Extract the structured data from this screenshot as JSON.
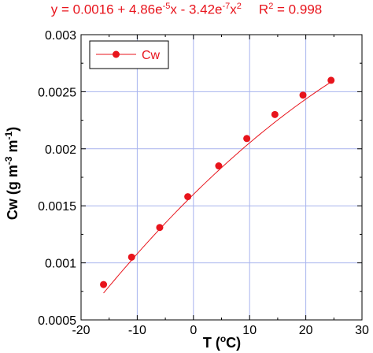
{
  "annotation": {
    "equation_prefix": "y = 0.0016 + 4.86e",
    "equation_exp1": "-5",
    "equation_mid": "x - 3.42e",
    "equation_exp2": "-7",
    "equation_mid2": "x",
    "equation_exp3": "2",
    "r2_label": "R",
    "r2_exp": "2",
    "r2_value": " = 0.998",
    "color": "#e8141c"
  },
  "chart_data": {
    "type": "scatter",
    "title": "",
    "xlabel_main": "T (",
    "xlabel_sup": "o",
    "xlabel_end": "C)",
    "ylabel_main": "Cw (g m",
    "ylabel_sup1": "-3",
    "ylabel_mid": " m",
    "ylabel_sup2": "-1",
    "ylabel_end": ")",
    "xlim": [
      -20,
      30
    ],
    "ylim": [
      0.0005,
      0.003
    ],
    "xticks": [
      -20,
      -10,
      0,
      10,
      20,
      30
    ],
    "xtick_labels": [
      "-20",
      "-10",
      "0",
      "10",
      "20",
      "30"
    ],
    "yticks": [
      0.0005,
      0.001,
      0.0015,
      0.002,
      0.0025,
      0.003
    ],
    "ytick_labels": [
      "0.0005",
      "0.001",
      "0.0015",
      "0.002",
      "0.0025",
      "0.003"
    ],
    "grid": true,
    "legend_position": "top-left",
    "series": [
      {
        "name": "Cw",
        "color": "#e8141c",
        "marker": "circle",
        "x": [
          -16,
          -11,
          -6,
          -1,
          4.5,
          9.5,
          14.5,
          19.5,
          24.5
        ],
        "y": [
          0.00081,
          0.00105,
          0.00131,
          0.00158,
          0.00185,
          0.00209,
          0.0023,
          0.00247,
          0.0026
        ]
      }
    ],
    "fit": {
      "type": "quadratic",
      "coefficients": [
        0.0016,
        4.86e-05,
        -3.42e-07
      ],
      "x_range": [
        -16,
        24.5
      ],
      "color": "#e8141c"
    }
  }
}
